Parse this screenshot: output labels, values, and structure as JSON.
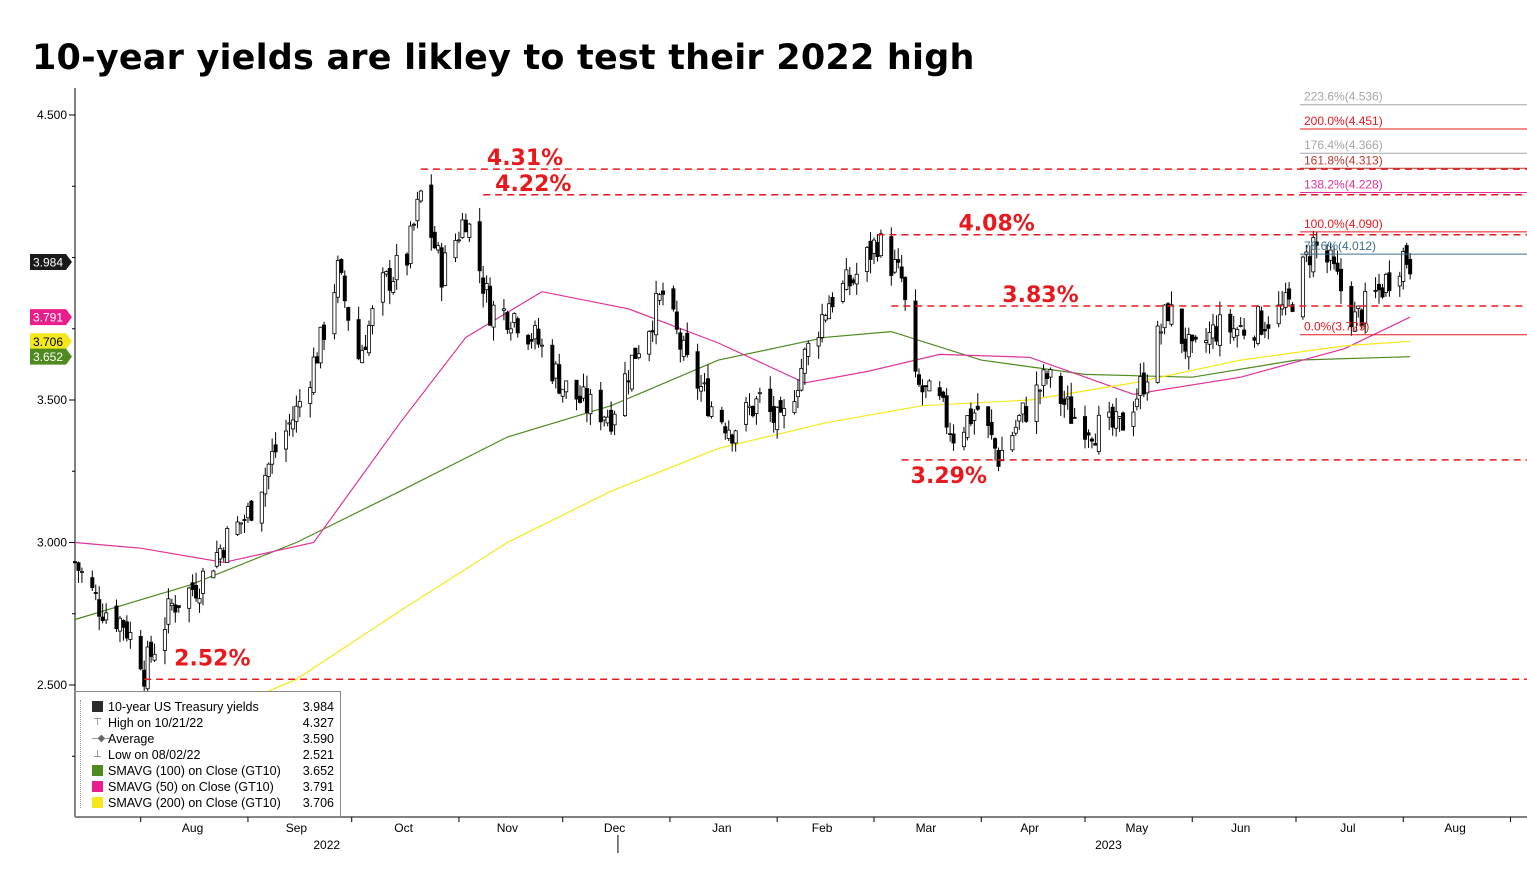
{
  "title": "10-year yields are likley to test their 2022 high",
  "chart_data": {
    "type": "candlestick",
    "title": "10-year yields are likley to test their 2022 high",
    "y_ticks": [
      "2.500",
      "3.000",
      "3.500",
      "4.500"
    ],
    "ylim": [
      2.2,
      4.57
    ],
    "x_month_labels": [
      "Aug",
      "Sep",
      "Oct",
      "Nov",
      "Dec",
      "Jan",
      "Feb",
      "Mar",
      "Apr",
      "May",
      "Jun",
      "Jul",
      "Aug"
    ],
    "x_year_labels": [
      "2022",
      "2023"
    ],
    "date_range": [
      "2022-07-13",
      "2023-08-31"
    ],
    "close_series": [
      [
        "2022-07-13",
        2.93
      ],
      [
        "2022-07-20",
        2.78
      ],
      [
        "2022-07-27",
        2.72
      ],
      [
        "2022-08-01",
        2.6
      ],
      [
        "2022-08-02",
        2.55
      ],
      [
        "2022-08-10",
        2.78
      ],
      [
        "2022-08-18",
        2.86
      ],
      [
        "2022-08-25",
        3.0
      ],
      [
        "2022-09-01",
        3.1
      ],
      [
        "2022-09-08",
        3.3
      ],
      [
        "2022-09-15",
        3.46
      ],
      [
        "2022-09-22",
        3.7
      ],
      [
        "2022-09-27",
        3.95
      ],
      [
        "2022-10-03",
        3.65
      ],
      [
        "2022-10-10",
        3.9
      ],
      [
        "2022-10-17",
        4.0
      ],
      [
        "2022-10-21",
        4.22
      ],
      [
        "2022-10-27",
        3.95
      ],
      [
        "2022-11-03",
        4.15
      ],
      [
        "2022-11-10",
        3.82
      ],
      [
        "2022-11-17",
        3.8
      ],
      [
        "2022-11-24",
        3.7
      ],
      [
        "2022-12-01",
        3.55
      ],
      [
        "2022-12-08",
        3.48
      ],
      [
        "2022-12-15",
        3.45
      ],
      [
        "2022-12-22",
        3.67
      ],
      [
        "2022-12-30",
        3.87
      ],
      [
        "2023-01-06",
        3.62
      ],
      [
        "2023-01-13",
        3.48
      ],
      [
        "2023-01-19",
        3.4
      ],
      [
        "2023-01-27",
        3.5
      ],
      [
        "2023-02-02",
        3.4
      ],
      [
        "2023-02-09",
        3.65
      ],
      [
        "2023-02-16",
        3.85
      ],
      [
        "2023-02-23",
        3.92
      ],
      [
        "2023-03-02",
        4.06
      ],
      [
        "2023-03-09",
        3.92
      ],
      [
        "2023-03-13",
        3.55
      ],
      [
        "2023-03-20",
        3.48
      ],
      [
        "2023-03-24",
        3.38
      ],
      [
        "2023-03-31",
        3.47
      ],
      [
        "2023-04-06",
        3.3
      ],
      [
        "2023-04-13",
        3.45
      ],
      [
        "2023-04-20",
        3.58
      ],
      [
        "2023-04-27",
        3.45
      ],
      [
        "2023-05-04",
        3.4
      ],
      [
        "2023-05-11",
        3.4
      ],
      [
        "2023-05-18",
        3.57
      ],
      [
        "2023-05-25",
        3.82
      ],
      [
        "2023-06-01",
        3.65
      ],
      [
        "2023-06-08",
        3.75
      ],
      [
        "2023-06-15",
        3.75
      ],
      [
        "2023-06-22",
        3.78
      ],
      [
        "2023-06-29",
        3.83
      ],
      [
        "2023-07-06",
        4.05
      ],
      [
        "2023-07-11",
        3.97
      ],
      [
        "2023-07-18",
        3.78
      ],
      [
        "2023-07-25",
        3.88
      ],
      [
        "2023-08-01",
        4.01
      ],
      [
        "2023-08-03",
        3.984
      ]
    ],
    "moving_averages": {
      "SMAVG (100) on Close (GT10)": [
        [
          "2022-07-13",
          2.73
        ],
        [
          "2022-08-15",
          2.85
        ],
        [
          "2022-09-15",
          3.0
        ],
        [
          "2022-10-15",
          3.18
        ],
        [
          "2022-11-15",
          3.37
        ],
        [
          "2022-12-15",
          3.48
        ],
        [
          "2023-01-15",
          3.64
        ],
        [
          "2023-02-15",
          3.72
        ],
        [
          "2023-03-06",
          3.74
        ],
        [
          "2023-04-01",
          3.64
        ],
        [
          "2023-05-01",
          3.59
        ],
        [
          "2023-06-01",
          3.58
        ],
        [
          "2023-07-01",
          3.64
        ],
        [
          "2023-08-03",
          3.652
        ]
      ],
      "SMAVG (50) on Close (GT10)": [
        [
          "2022-07-13",
          3.0
        ],
        [
          "2022-08-01",
          2.98
        ],
        [
          "2022-08-25",
          2.93
        ],
        [
          "2022-09-20",
          3.0
        ],
        [
          "2022-10-15",
          3.42
        ],
        [
          "2022-11-03",
          3.72
        ],
        [
          "2022-11-25",
          3.88
        ],
        [
          "2022-12-20",
          3.82
        ],
        [
          "2023-01-15",
          3.7
        ],
        [
          "2023-02-09",
          3.56
        ],
        [
          "2023-02-27",
          3.6
        ],
        [
          "2023-03-20",
          3.66
        ],
        [
          "2023-04-15",
          3.65
        ],
        [
          "2023-05-15",
          3.52
        ],
        [
          "2023-06-15",
          3.58
        ],
        [
          "2023-07-15",
          3.68
        ],
        [
          "2023-08-03",
          3.791
        ]
      ],
      "SMAVG (200) on Close (GT10)": [
        [
          "2022-07-13",
          2.22
        ],
        [
          "2022-08-15",
          2.36
        ],
        [
          "2022-09-15",
          2.52
        ],
        [
          "2022-10-15",
          2.76
        ],
        [
          "2022-11-15",
          3.0
        ],
        [
          "2022-12-15",
          3.18
        ],
        [
          "2023-01-15",
          3.33
        ],
        [
          "2023-02-15",
          3.42
        ],
        [
          "2023-03-15",
          3.48
        ],
        [
          "2023-04-15",
          3.5
        ],
        [
          "2023-05-15",
          3.56
        ],
        [
          "2023-06-15",
          3.64
        ],
        [
          "2023-07-15",
          3.69
        ],
        [
          "2023-08-03",
          3.706
        ]
      ]
    },
    "levels": [
      {
        "label": "4.31%",
        "value": 4.31,
        "from": "2022-10-21"
      },
      {
        "label": "4.22%",
        "value": 4.22,
        "from": "2022-11-08"
      },
      {
        "label": "4.08%",
        "value": 4.08,
        "from": "2023-03-02"
      },
      {
        "label": "3.83%",
        "value": 3.83,
        "from": "2023-03-06"
      },
      {
        "label": "3.29%",
        "value": 3.29,
        "from": "2023-03-09"
      },
      {
        "label": "2.52%",
        "value": 2.52,
        "from": "2022-08-02"
      }
    ],
    "fibonacci": [
      {
        "label": "223.6%(4.536)",
        "value": 4.536,
        "color": "#a6a6a6"
      },
      {
        "label": "200.0%(4.451)",
        "value": 4.451,
        "color": "#e8191c"
      },
      {
        "label": "176.4%(4.366)",
        "value": 4.366,
        "color": "#a6a6a6"
      },
      {
        "label": "161.8%(4.313)",
        "value": 4.313,
        "color": "#c0392b"
      },
      {
        "label": "138.2%(4.228)",
        "value": 4.228,
        "color": "#e0339a"
      },
      {
        "label": "100.0%(4.090)",
        "value": 4.09,
        "color": "#e8191c"
      },
      {
        "label": "78.6%(4.012)",
        "value": 4.012,
        "color": "#3b6e8f"
      },
      {
        "label": "0.0%(3.729)",
        "value": 3.729,
        "color": "#e8191c"
      }
    ],
    "tags": [
      {
        "text": "3.984",
        "value": 3.984,
        "bg": "#1a1a1a",
        "fg": "#ffffff"
      },
      {
        "text": "3.791",
        "value": 3.791,
        "bg": "#e91e8c",
        "fg": "#ffffff"
      },
      {
        "text": "3.706",
        "value": 3.706,
        "bg": "#f4e81a",
        "fg": "#000000"
      },
      {
        "text": "3.652",
        "value": 3.652,
        "bg": "#4e8a1e",
        "fg": "#ffffff"
      }
    ],
    "legend": [
      {
        "label": "10-year US Treasury yields",
        "value": "3.984",
        "marker": "square",
        "color": "#2b2b2b"
      },
      {
        "label": "High on 10/21/22",
        "value": "4.327",
        "marker": "high"
      },
      {
        "label": "Average",
        "value": "3.590",
        "marker": "avg"
      },
      {
        "label": "Low on 08/02/22",
        "value": "2.521",
        "marker": "low"
      },
      {
        "label": "SMAVG (100)  on Close (GT10)",
        "value": "3.652",
        "marker": "square",
        "color": "#4e8a1e"
      },
      {
        "label": "SMAVG (50)  on Close (GT10)",
        "value": "3.791",
        "marker": "square",
        "color": "#e91e8c"
      },
      {
        "label": "SMAVG (200)  on Close (GT10)",
        "value": "3.706",
        "marker": "square",
        "color": "#f4e81a"
      }
    ],
    "colors": {
      "level": "#e8191c",
      "sma100": "#4e8a1e",
      "sma50": "#e0339a",
      "sma200": "#f4e81a",
      "candle": "#000000"
    }
  }
}
